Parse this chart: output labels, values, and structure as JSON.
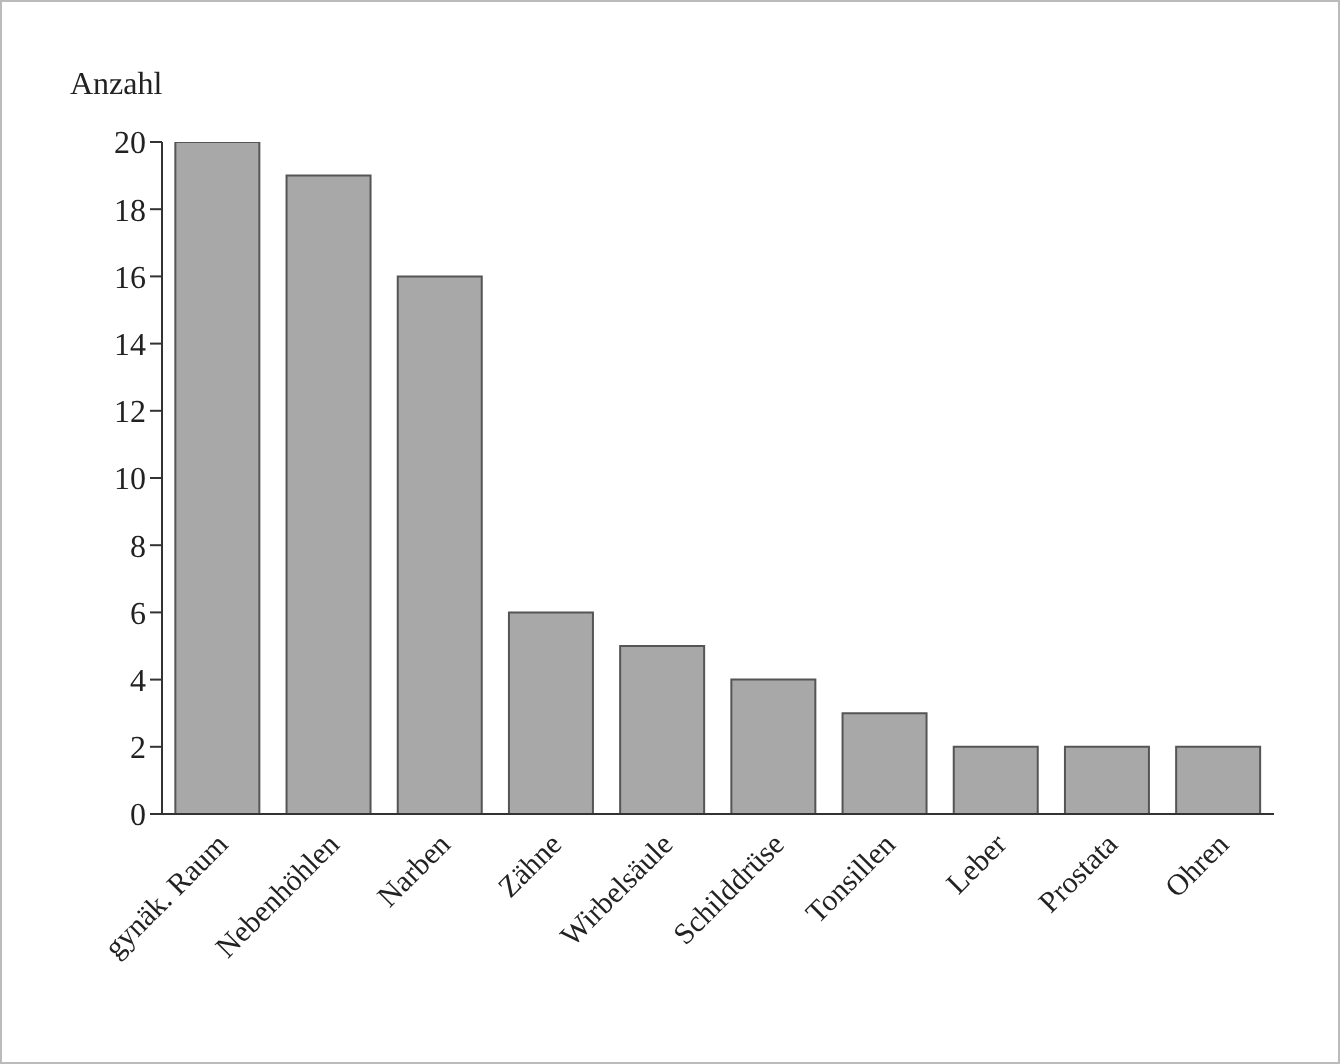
{
  "chart_data": {
    "type": "bar",
    "ylabel": "Anzahl",
    "categories": [
      "gynäk. Raum",
      "Nebenhöhlen",
      "Narben",
      "Zähne",
      "Wirbelsäule",
      "Schilddrüse",
      "Tonsillen",
      "Leber",
      "Prostata",
      "Ohren"
    ],
    "values": [
      20,
      19,
      16,
      6,
      5,
      4,
      3,
      2,
      2,
      2
    ],
    "color": "#a8a8a8",
    "ylim": [
      0,
      20
    ],
    "yticks": [
      0,
      2,
      4,
      6,
      8,
      10,
      12,
      14,
      16,
      18,
      20
    ]
  }
}
